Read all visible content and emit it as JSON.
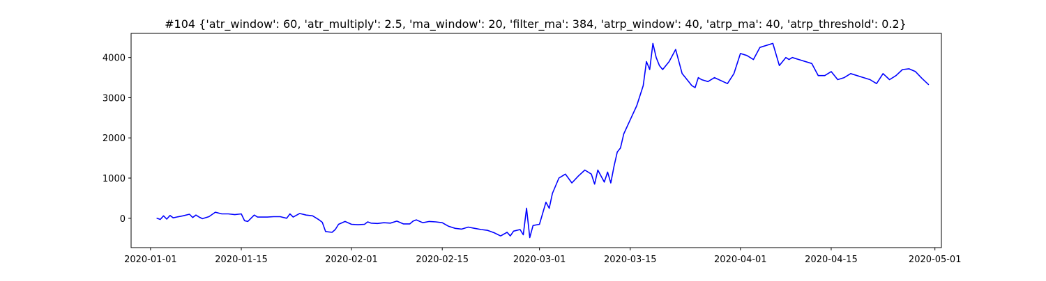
{
  "chart_data": {
    "type": "line",
    "title": "#104 {'atr_window': 60, 'atr_multiply': 2.5, 'ma_window': 20, 'filter_ma': 384, 'atrp_window': 40, 'atrp_ma': 40, 'atrp_threshold': 0.2}",
    "xlabel": "",
    "ylabel": "",
    "x_axis_type": "date",
    "xlim": [
      "2019-12-29",
      "2020-05-02"
    ],
    "ylim": [
      -730,
      4600
    ],
    "x_ticks": [
      "2020-01-01",
      "2020-01-15",
      "2020-02-01",
      "2020-02-15",
      "2020-03-01",
      "2020-03-15",
      "2020-04-01",
      "2020-04-15",
      "2020-05-01"
    ],
    "y_ticks": [
      0,
      1000,
      2000,
      3000,
      4000
    ],
    "grid": false,
    "legend": "none",
    "colors": {
      "line": "#0000ff",
      "axes": "#000000",
      "background": "#ffffff"
    },
    "series": [
      {
        "x": [
          "2020-01-02",
          "2020-01-02 12:00",
          "2020-01-03",
          "2020-01-03 12:00",
          "2020-01-04",
          "2020-01-04 12:00",
          "2020-01-05",
          "2020-01-06",
          "2020-01-07",
          "2020-01-07 12:00",
          "2020-01-08",
          "2020-01-08 12:00",
          "2020-01-09",
          "2020-01-10",
          "2020-01-11",
          "2020-01-12",
          "2020-01-13",
          "2020-01-14",
          "2020-01-15",
          "2020-01-15 12:00",
          "2020-01-16",
          "2020-01-17",
          "2020-01-17 12:00",
          "2020-01-18",
          "2020-01-19",
          "2020-01-20",
          "2020-01-21",
          "2020-01-22",
          "2020-01-22 12:00",
          "2020-01-23",
          "2020-01-24",
          "2020-01-25",
          "2020-01-26",
          "2020-01-27",
          "2020-01-27 12:00",
          "2020-01-28",
          "2020-01-29",
          "2020-01-29 12:00",
          "2020-01-30",
          "2020-01-31",
          "2020-02-01",
          "2020-02-02",
          "2020-02-03",
          "2020-02-03 12:00",
          "2020-02-04",
          "2020-02-05",
          "2020-02-06",
          "2020-02-07",
          "2020-02-08",
          "2020-02-09",
          "2020-02-10",
          "2020-02-10 12:00",
          "2020-02-11",
          "2020-02-12",
          "2020-02-13",
          "2020-02-14",
          "2020-02-15",
          "2020-02-16",
          "2020-02-17",
          "2020-02-18",
          "2020-02-19",
          "2020-02-20",
          "2020-02-21",
          "2020-02-22",
          "2020-02-23",
          "2020-02-24",
          "2020-02-25",
          "2020-02-25 12:00",
          "2020-02-26",
          "2020-02-27",
          "2020-02-27 12:00",
          "2020-02-28",
          "2020-02-28 12:00",
          "2020-02-29",
          "2020-03-01",
          "2020-03-02",
          "2020-03-02 12:00",
          "2020-03-03",
          "2020-03-04",
          "2020-03-05",
          "2020-03-06",
          "2020-03-07",
          "2020-03-08",
          "2020-03-09",
          "2020-03-09 12:00",
          "2020-03-10",
          "2020-03-11",
          "2020-03-11 12:00",
          "2020-03-12",
          "2020-03-12 12:00",
          "2020-03-13",
          "2020-03-13 12:00",
          "2020-03-14",
          "2020-03-15",
          "2020-03-16",
          "2020-03-17",
          "2020-03-17 12:00",
          "2020-03-18",
          "2020-03-18 12:00",
          "2020-03-19",
          "2020-03-19 12:00",
          "2020-03-20",
          "2020-03-21",
          "2020-03-22",
          "2020-03-23",
          "2020-03-24",
          "2020-03-24 12:00",
          "2020-03-25",
          "2020-03-25 12:00",
          "2020-03-26",
          "2020-03-27",
          "2020-03-28",
          "2020-03-30",
          "2020-03-31",
          "2020-04-01",
          "2020-04-02",
          "2020-04-03",
          "2020-04-04",
          "2020-04-06",
          "2020-04-07",
          "2020-04-08",
          "2020-04-08 12:00",
          "2020-04-09",
          "2020-04-12",
          "2020-04-13",
          "2020-04-14",
          "2020-04-15",
          "2020-04-16",
          "2020-04-17",
          "2020-04-18",
          "2020-04-20",
          "2020-04-21",
          "2020-04-22",
          "2020-04-23",
          "2020-04-24",
          "2020-04-25",
          "2020-04-26",
          "2020-04-27",
          "2020-04-28",
          "2020-04-29",
          "2020-04-30"
        ],
        "y": [
          0,
          -30,
          60,
          -20,
          70,
          10,
          30,
          60,
          100,
          20,
          80,
          30,
          -10,
          40,
          150,
          110,
          110,
          90,
          110,
          -60,
          -80,
          80,
          30,
          30,
          30,
          40,
          40,
          0,
          110,
          30,
          120,
          80,
          60,
          -40,
          -100,
          -330,
          -350,
          -280,
          -150,
          -80,
          -150,
          -160,
          -150,
          -90,
          -120,
          -130,
          -110,
          -120,
          -70,
          -140,
          -140,
          -70,
          -40,
          -110,
          -80,
          -90,
          -110,
          -200,
          -250,
          -270,
          -220,
          -250,
          -280,
          -300,
          -360,
          -440,
          -350,
          -440,
          -320,
          -280,
          -410,
          250,
          -480,
          -180,
          -150,
          400,
          250,
          620,
          1000,
          1100,
          880,
          1050,
          1200,
          1100,
          850,
          1200,
          900,
          1150,
          880,
          1300,
          1650,
          1750,
          2100,
          2450,
          2800,
          3300,
          3900,
          3700,
          4350,
          4000,
          3800,
          3700,
          3900,
          4200,
          3600,
          3400,
          3300,
          3250,
          3500,
          3450,
          3400,
          3500,
          3350,
          3600,
          4100,
          4050,
          3950,
          4250,
          4350,
          3800,
          4000,
          3950,
          4000,
          3850,
          3550,
          3550,
          3650,
          3450,
          3500,
          3600,
          3500,
          3450,
          3350,
          3600,
          3450,
          3550,
          3700,
          3720,
          3650,
          3480,
          3330
        ]
      }
    ]
  }
}
